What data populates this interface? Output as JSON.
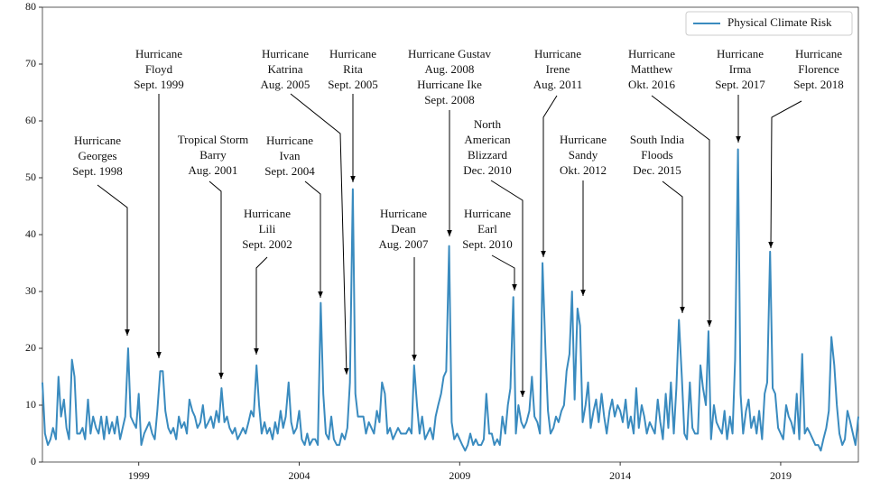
{
  "chart_data": {
    "type": "line",
    "legend": "upper right",
    "xlim": [
      1996,
      2021.42
    ],
    "xticks": [
      1999,
      2004,
      2009,
      2014,
      2019
    ],
    "ylim": [
      0,
      80
    ],
    "yticks": [
      0,
      10,
      20,
      30,
      40,
      50,
      60,
      70,
      80
    ],
    "x": [
      1996,
      1996.08,
      1996.17,
      1996.25,
      1996.33,
      1996.42,
      1996.5,
      1996.58,
      1996.67,
      1996.75,
      1996.83,
      1996.92,
      1997,
      1997.08,
      1997.17,
      1997.25,
      1997.33,
      1997.42,
      1997.5,
      1997.58,
      1997.67,
      1997.75,
      1997.83,
      1997.92,
      1998,
      1998.08,
      1998.17,
      1998.25,
      1998.33,
      1998.42,
      1998.5,
      1998.58,
      1998.67,
      1998.75,
      1998.83,
      1998.92,
      1999,
      1999.08,
      1999.17,
      1999.25,
      1999.33,
      1999.42,
      1999.5,
      1999.58,
      1999.67,
      1999.75,
      1999.83,
      1999.92,
      2000,
      2000.08,
      2000.17,
      2000.25,
      2000.33,
      2000.42,
      2000.5,
      2000.58,
      2000.67,
      2000.75,
      2000.83,
      2000.92,
      2001,
      2001.08,
      2001.17,
      2001.25,
      2001.33,
      2001.42,
      2001.5,
      2001.58,
      2001.67,
      2001.75,
      2001.83,
      2001.92,
      2002,
      2002.08,
      2002.17,
      2002.25,
      2002.33,
      2002.42,
      2002.5,
      2002.58,
      2002.67,
      2002.75,
      2002.83,
      2002.92,
      2003,
      2003.08,
      2003.17,
      2003.25,
      2003.33,
      2003.42,
      2003.5,
      2003.58,
      2003.67,
      2003.75,
      2003.83,
      2003.92,
      2004,
      2004.08,
      2004.17,
      2004.25,
      2004.33,
      2004.42,
      2004.5,
      2004.58,
      2004.67,
      2004.75,
      2004.83,
      2004.92,
      2005,
      2005.08,
      2005.17,
      2005.25,
      2005.33,
      2005.42,
      2005.5,
      2005.58,
      2005.67,
      2005.75,
      2005.83,
      2005.92,
      2006,
      2006.08,
      2006.17,
      2006.25,
      2006.33,
      2006.42,
      2006.5,
      2006.58,
      2006.67,
      2006.75,
      2006.83,
      2006.92,
      2007,
      2007.08,
      2007.17,
      2007.25,
      2007.33,
      2007.42,
      2007.5,
      2007.58,
      2007.67,
      2007.75,
      2007.83,
      2007.92,
      2008,
      2008.08,
      2008.17,
      2008.25,
      2008.33,
      2008.42,
      2008.5,
      2008.58,
      2008.67,
      2008.75,
      2008.83,
      2008.92,
      2009,
      2009.08,
      2009.17,
      2009.25,
      2009.33,
      2009.42,
      2009.5,
      2009.58,
      2009.67,
      2009.75,
      2009.83,
      2009.92,
      2010,
      2010.08,
      2010.17,
      2010.25,
      2010.33,
      2010.42,
      2010.5,
      2010.58,
      2010.67,
      2010.75,
      2010.83,
      2010.92,
      2011,
      2011.08,
      2011.17,
      2011.25,
      2011.33,
      2011.42,
      2011.5,
      2011.58,
      2011.67,
      2011.75,
      2011.83,
      2011.92,
      2012,
      2012.08,
      2012.17,
      2012.25,
      2012.33,
      2012.42,
      2012.5,
      2012.58,
      2012.67,
      2012.75,
      2012.83,
      2012.92,
      2013,
      2013.08,
      2013.17,
      2013.25,
      2013.33,
      2013.42,
      2013.5,
      2013.58,
      2013.67,
      2013.75,
      2013.83,
      2013.92,
      2014,
      2014.08,
      2014.17,
      2014.25,
      2014.33,
      2014.42,
      2014.5,
      2014.58,
      2014.67,
      2014.75,
      2014.83,
      2014.92,
      2015,
      2015.08,
      2015.17,
      2015.25,
      2015.33,
      2015.42,
      2015.5,
      2015.58,
      2015.67,
      2015.75,
      2015.83,
      2015.92,
      2016,
      2016.08,
      2016.17,
      2016.25,
      2016.33,
      2016.42,
      2016.5,
      2016.58,
      2016.67,
      2016.75,
      2016.83,
      2016.92,
      2017,
      2017.08,
      2017.17,
      2017.25,
      2017.33,
      2017.42,
      2017.5,
      2017.58,
      2017.67,
      2017.75,
      2017.83,
      2017.92,
      2018,
      2018.08,
      2018.17,
      2018.25,
      2018.33,
      2018.42,
      2018.5,
      2018.58,
      2018.67,
      2018.75,
      2018.83,
      2018.92,
      2019,
      2019.08,
      2019.17,
      2019.25,
      2019.33,
      2019.42,
      2019.5,
      2019.58,
      2019.67,
      2019.75,
      2019.83,
      2019.92,
      2020,
      2020.08,
      2020.17,
      2020.25,
      2020.33,
      2020.42,
      2020.5,
      2020.58,
      2020.67,
      2020.75,
      2020.83,
      2020.92,
      2021,
      2021.08,
      2021.17,
      2021.25,
      2021.33,
      2021.42
    ],
    "series": [
      {
        "name": "Physical Climate Risk",
        "color": "#3a8bbf",
        "values": [
          14,
          5,
          3,
          4,
          6,
          4,
          15,
          8,
          11,
          6,
          4,
          18,
          15,
          5,
          5,
          6,
          4,
          11,
          5,
          8,
          6,
          5,
          8,
          4,
          8,
          5,
          7,
          5,
          8,
          4,
          6,
          8,
          20,
          8,
          7,
          6,
          12,
          3,
          5,
          6,
          7,
          5,
          4,
          9,
          16,
          16,
          9,
          6,
          5,
          6,
          4,
          8,
          6,
          7,
          5,
          11,
          9,
          8,
          6,
          7,
          10,
          6,
          7,
          8,
          6,
          9,
          7,
          13,
          7,
          8,
          6,
          5,
          6,
          4,
          5,
          6,
          5,
          7,
          9,
          8,
          17,
          10,
          5,
          7,
          5,
          6,
          4,
          7,
          5,
          9,
          6,
          8,
          14,
          7,
          5,
          6,
          9,
          4,
          3,
          5,
          3,
          4,
          4,
          3,
          28,
          12,
          5,
          4,
          8,
          4,
          3,
          3,
          5,
          4,
          6,
          14,
          48,
          12,
          8,
          8,
          8,
          5,
          7,
          6,
          5,
          9,
          7,
          14,
          12,
          5,
          6,
          4,
          5,
          6,
          5,
          5,
          5,
          6,
          5,
          17,
          10,
          5,
          8,
          4,
          5,
          6,
          4,
          8,
          10,
          12,
          15,
          16,
          38,
          7,
          4,
          5,
          4,
          3,
          2,
          3,
          5,
          3,
          4,
          3,
          3,
          4,
          12,
          5,
          5,
          3,
          4,
          3,
          8,
          5,
          10,
          13,
          29,
          5,
          10,
          7,
          6,
          7,
          9,
          15,
          8,
          7,
          5,
          35,
          20,
          9,
          5,
          6,
          8,
          7,
          9,
          10,
          16,
          19,
          30,
          11,
          27,
          24,
          7,
          10,
          14,
          6,
          9,
          11,
          7,
          12,
          8,
          5,
          9,
          11,
          8,
          10,
          9,
          7,
          11,
          6,
          8,
          5,
          13,
          6,
          10,
          8,
          5,
          7,
          6,
          5,
          11,
          7,
          4,
          12,
          6,
          14,
          5,
          13,
          25,
          15,
          5,
          4,
          14,
          6,
          5,
          5,
          17,
          13,
          10,
          23,
          4,
          10,
          7,
          6,
          5,
          9,
          4,
          8,
          5,
          18,
          55,
          12,
          5,
          9,
          11,
          6,
          8,
          5,
          9,
          4,
          12,
          14,
          37,
          13,
          12,
          6,
          5,
          4,
          10,
          8,
          7,
          5,
          12,
          4,
          19,
          5,
          6,
          5,
          4,
          3,
          3,
          2,
          4,
          6,
          9,
          22,
          17,
          10,
          5,
          3,
          4,
          9,
          7,
          5,
          3,
          8
        ]
      }
    ],
    "annotations": [
      {
        "lines": [
          "Hurricane",
          "Georges",
          "Sept. 1998"
        ]
      },
      {
        "lines": [
          "Hurricane",
          "Floyd",
          "Sept. 1999"
        ]
      },
      {
        "lines": [
          "Tropical Storm",
          "Barry",
          "Aug. 2001"
        ]
      },
      {
        "lines": [
          "Hurricane",
          "Lili",
          "Sept. 2002"
        ]
      },
      {
        "lines": [
          "Hurricane",
          "Ivan",
          "Sept. 2004"
        ]
      },
      {
        "lines": [
          "Hurricane",
          "Katrina",
          "Aug. 2005"
        ]
      },
      {
        "lines": [
          "Hurricane",
          "Rita",
          "Sept. 2005"
        ]
      },
      {
        "lines": [
          "Hurricane",
          "Dean",
          "Aug. 2007"
        ]
      },
      {
        "lines": [
          "Hurricane Gustav",
          "Aug. 2008",
          "Hurricane Ike",
          "Sept. 2008"
        ]
      },
      {
        "lines": [
          "North",
          "American",
          "Blizzard",
          "Dec. 2010"
        ]
      },
      {
        "lines": [
          "Hurricane",
          "Earl",
          "Sept. 2010"
        ]
      },
      {
        "lines": [
          "Hurricane",
          "Irene",
          "Aug. 2011"
        ]
      },
      {
        "lines": [
          "Hurricane",
          "Sandy",
          "Okt. 2012"
        ]
      },
      {
        "lines": [
          "South India",
          "Floods",
          "Dec. 2015"
        ]
      },
      {
        "lines": [
          "Hurricane",
          "Matthew",
          "Okt. 2016"
        ]
      },
      {
        "lines": [
          "Hurricane",
          "Irma",
          "Sept. 2017"
        ]
      },
      {
        "lines": [
          "Hurricane",
          "Florence",
          "Sept. 2018"
        ]
      }
    ]
  }
}
